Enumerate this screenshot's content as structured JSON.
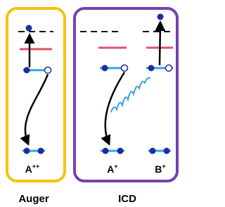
{
  "panels": [
    {
      "label": "Auger",
      "atoms": [
        {
          "symbol": "A",
          "charge": "++"
        }
      ]
    },
    {
      "label": "ICD",
      "atoms": [
        {
          "symbol": "A",
          "charge": "+"
        },
        {
          "symbol": "B",
          "charge": "+"
        }
      ]
    }
  ]
}
